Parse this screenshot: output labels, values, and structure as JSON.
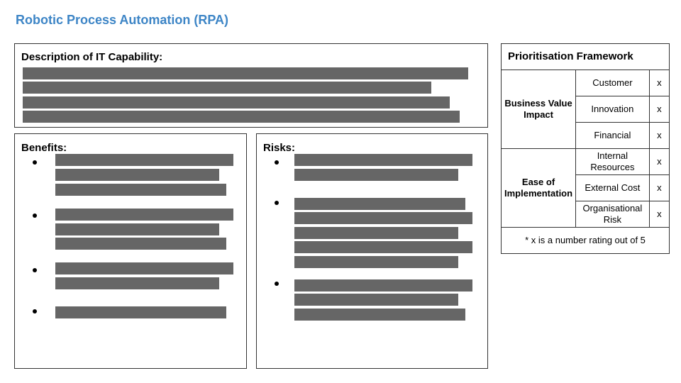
{
  "title": "Robotic Process Automation (RPA)",
  "description": {
    "heading": "Description of IT Capability:"
  },
  "benefits": {
    "heading": "Benefits:"
  },
  "risks": {
    "heading": "Risks:"
  },
  "framework": {
    "heading": "Prioritisation Framework",
    "groups": [
      {
        "label": "Business Value Impact",
        "criteria": [
          {
            "name": "Customer",
            "value": "x"
          },
          {
            "name": "Innovation",
            "value": "x"
          },
          {
            "name": "Financial",
            "value": "x"
          }
        ]
      },
      {
        "label": "Ease of Implementation",
        "criteria": [
          {
            "name": "Internal Resources",
            "value": "x"
          },
          {
            "name": "External Cost",
            "value": "x"
          },
          {
            "name": "Organisational Risk",
            "value": "x"
          }
        ]
      }
    ],
    "note": "* x is a number rating out of 5"
  }
}
